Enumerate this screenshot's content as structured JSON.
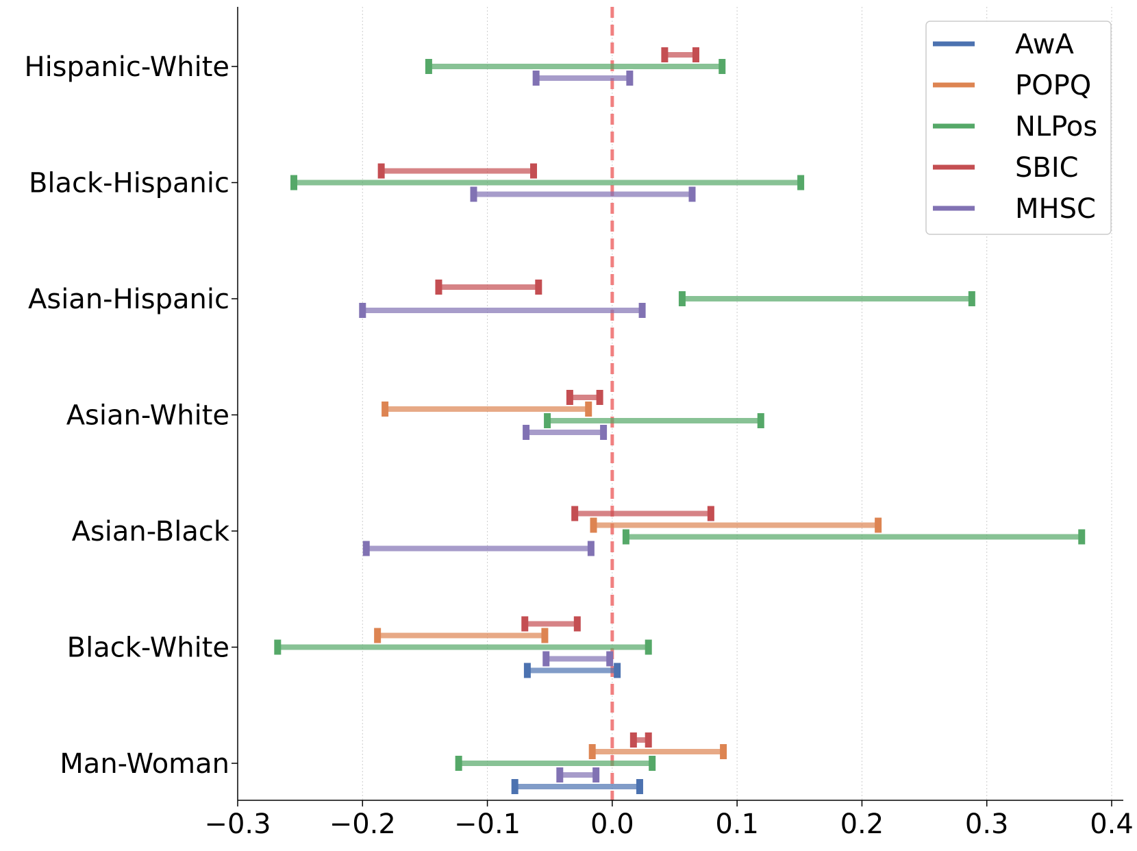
{
  "chart_data": {
    "type": "interval",
    "title": "",
    "xlabel": "",
    "ylabel": "",
    "xlim": [
      -0.3,
      0.4
    ],
    "xticks": [
      -0.3,
      -0.2,
      -0.1,
      0.0,
      0.1,
      0.2,
      0.3,
      0.4
    ],
    "xtick_labels": [
      "−0.3",
      "−0.2",
      "−0.1",
      "0.0",
      "0.1",
      "0.2",
      "0.3",
      "0.4"
    ],
    "reference_line": {
      "x": 0.0,
      "color": "#f08080",
      "style": "dashed"
    },
    "grid": "vertical",
    "legend_position": "top-right",
    "categories": [
      "Hispanic-White",
      "Black-Hispanic",
      "Asian-Hispanic",
      "Asian-White",
      "Asian-Black",
      "Black-White",
      "Man-Woman"
    ],
    "series": [
      {
        "name": "AwA",
        "color": "#4c72b0",
        "intervals": {
          "Black-White": [
            -0.068,
            0.004
          ],
          "Man-Woman": [
            -0.078,
            0.022
          ]
        }
      },
      {
        "name": "POPQ",
        "color": "#dd8452",
        "intervals": {
          "Asian-White": [
            -0.182,
            -0.019
          ],
          "Asian-Black": [
            -0.015,
            0.213
          ],
          "Black-White": [
            -0.188,
            -0.054
          ],
          "Man-Woman": [
            -0.016,
            0.089
          ]
        }
      },
      {
        "name": "NLPos",
        "color": "#55a868",
        "intervals": {
          "Hispanic-White": [
            -0.147,
            0.088
          ],
          "Black-Hispanic": [
            -0.255,
            0.151
          ],
          "Asian-Hispanic": [
            0.056,
            0.288
          ],
          "Asian-White": [
            -0.052,
            0.119
          ],
          "Asian-Black": [
            0.011,
            0.376
          ],
          "Black-White": [
            -0.268,
            0.029
          ],
          "Man-Woman": [
            -0.123,
            0.032
          ]
        }
      },
      {
        "name": "SBIC",
        "color": "#c44e52",
        "intervals": {
          "Hispanic-White": [
            0.042,
            0.067
          ],
          "Black-Hispanic": [
            -0.185,
            -0.063
          ],
          "Asian-Hispanic": [
            -0.139,
            -0.059
          ],
          "Asian-White": [
            -0.034,
            -0.01
          ],
          "Asian-Black": [
            -0.03,
            0.079
          ],
          "Black-White": [
            -0.07,
            -0.028
          ],
          "Man-Woman": [
            0.017,
            0.029
          ]
        }
      },
      {
        "name": "MHSC",
        "color": "#8172b3",
        "intervals": {
          "Hispanic-White": [
            -0.061,
            0.014
          ],
          "Black-Hispanic": [
            -0.111,
            0.064
          ],
          "Asian-Hispanic": [
            -0.2,
            0.024
          ],
          "Asian-White": [
            -0.069,
            -0.007
          ],
          "Asian-Black": [
            -0.197,
            -0.017
          ],
          "Black-White": [
            -0.053,
            -0.002
          ],
          "Man-Woman": [
            -0.042,
            -0.013
          ]
        }
      }
    ]
  }
}
